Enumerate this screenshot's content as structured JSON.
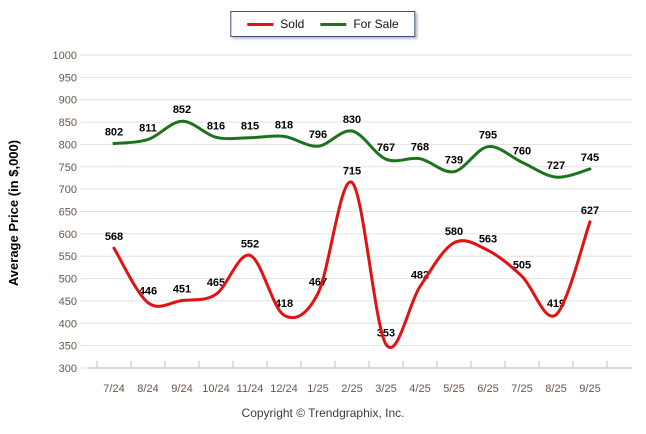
{
  "chart_data": {
    "type": "line",
    "line_style": "smooth",
    "categories": [
      "7/24",
      "8/24",
      "9/24",
      "10/24",
      "11/24",
      "12/24",
      "1/25",
      "2/25",
      "3/25",
      "4/25",
      "5/25",
      "6/25",
      "7/25",
      "8/25",
      "9/25"
    ],
    "series": [
      {
        "name": "Sold",
        "color": "#e21212",
        "values": [
          568,
          446,
          451,
          465,
          552,
          418,
          467,
          715,
          353,
          482,
          580,
          563,
          505,
          419,
          627
        ]
      },
      {
        "name": "For Sale",
        "color": "#1d731d",
        "values": [
          802,
          811,
          852,
          816,
          815,
          818,
          796,
          830,
          767,
          768,
          739,
          795,
          760,
          727,
          745
        ]
      }
    ],
    "title": "",
    "xlabel": "",
    "ylabel": "Average Price (in $,000)",
    "ylim": [
      300,
      1000
    ],
    "ytick_step": 50,
    "grid": true,
    "data_labels": true,
    "legend_position": "top-center"
  },
  "footer": {
    "copyright": "Copyright © Trendgraphix, Inc."
  },
  "colors": {
    "grid": "#e2e2e2",
    "axis": "#b4c6d4",
    "tick_label": "#6b564b",
    "data_label": "#000000",
    "legend_border": "#3d4d78",
    "background": "#ffffff",
    "copyright_text": "#3d3d3d"
  }
}
